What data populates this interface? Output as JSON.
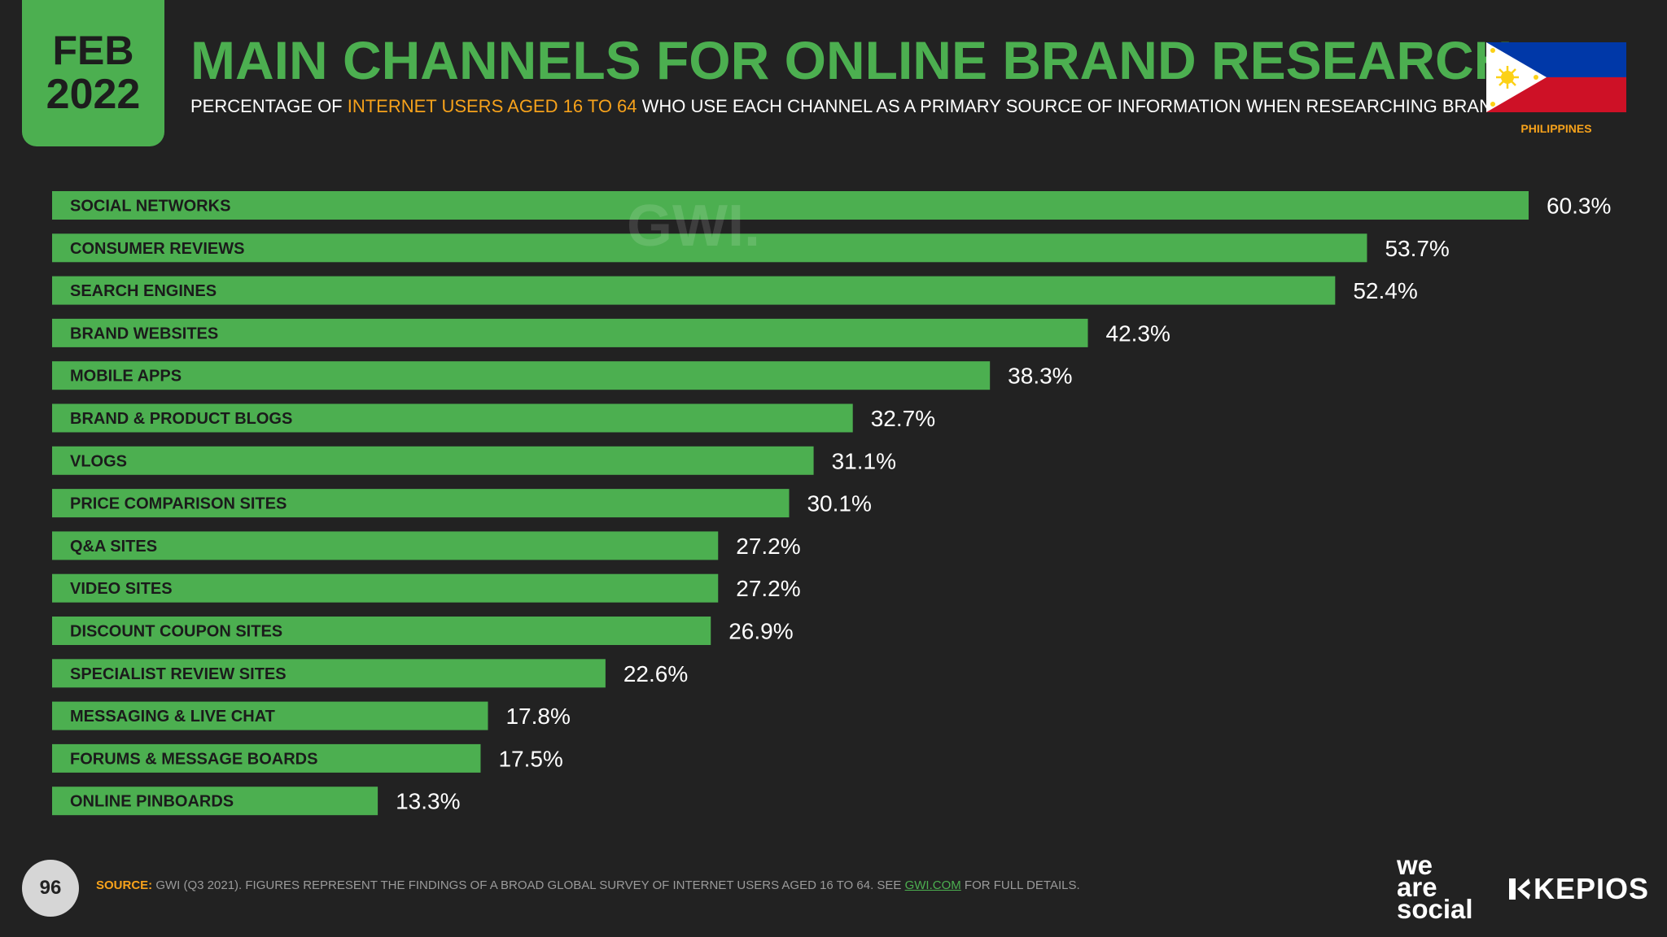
{
  "header": {
    "month": "FEB",
    "year": "2022",
    "title": "MAIN CHANNELS FOR ONLINE BRAND RESEARCH",
    "subtitle_pre": "PERCENTAGE OF ",
    "subtitle_highlight": "INTERNET USERS AGED 16 TO 64",
    "subtitle_post": " WHO USE EACH CHANNEL AS A PRIMARY SOURCE OF INFORMATION WHEN RESEARCHING BRANDS",
    "country": "PHILIPPINES"
  },
  "watermark": "GWI.",
  "colors": {
    "background": "#222222",
    "accent": "#4caf50",
    "highlight": "#f7a21b"
  },
  "chart_data": {
    "type": "bar",
    "orientation": "horizontal",
    "categories": [
      "SOCIAL NETWORKS",
      "CONSUMER REVIEWS",
      "SEARCH ENGINES",
      "BRAND WEBSITES",
      "MOBILE APPS",
      "BRAND & PRODUCT BLOGS",
      "VLOGS",
      "PRICE COMPARISON SITES",
      "Q&A SITES",
      "VIDEO SITES",
      "DISCOUNT COUPON SITES",
      "SPECIALIST REVIEW SITES",
      "MESSAGING & LIVE CHAT",
      "FORUMS & MESSAGE BOARDS",
      "ONLINE PINBOARDS"
    ],
    "values": [
      60.3,
      53.7,
      52.4,
      42.3,
      38.3,
      32.7,
      31.1,
      30.1,
      27.2,
      27.2,
      26.9,
      22.6,
      17.8,
      17.5,
      13.3
    ],
    "labels": [
      "60.3%",
      "53.7%",
      "52.4%",
      "42.3%",
      "38.3%",
      "32.7%",
      "31.1%",
      "30.1%",
      "27.2%",
      "27.2%",
      "26.9%",
      "22.6%",
      "17.8%",
      "17.5%",
      "13.3%"
    ],
    "unit": "%",
    "xlim": [
      0,
      60.3
    ]
  },
  "footer": {
    "page_number": "96",
    "source_label": "SOURCE:",
    "source_text": " GWI (Q3 2021). FIGURES REPRESENT THE FINDINGS OF A BROAD GLOBAL SURVEY OF INTERNET USERS AGED 16 TO 64. SEE ",
    "source_link": "GWI.COM",
    "source_tail": " FOR FULL DETAILS.",
    "brand1_line1": "we",
    "brand1_line2": "are",
    "brand1_line3": "social",
    "brand2": "KEPIOS"
  }
}
